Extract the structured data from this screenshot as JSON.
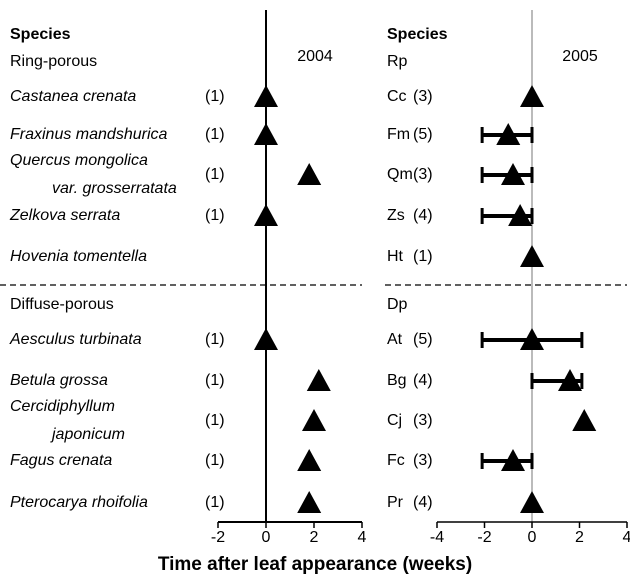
{
  "x_label": "Time after leaf appearance (weeks)",
  "chart_data": [
    {
      "type": "dot",
      "title": "2004",
      "column_title": "Species",
      "xlim": [
        -2,
        4
      ],
      "xticks": [
        -2,
        0,
        2,
        4
      ],
      "groups": [
        {
          "name": "Ring-porous",
          "categories": [
            "Castanea crenata",
            "Fraxinus mandshurica",
            "Quercus mongolica\nvar. grosserratata",
            "Zelkova serrata",
            "Hovenia tomentella"
          ],
          "n": [
            "(1)",
            "(1)",
            "(1)",
            "(1)",
            null
          ],
          "values": [
            0,
            0,
            1.8,
            0,
            null
          ]
        },
        {
          "name": "Diffuse-porous",
          "categories": [
            "Aesculus turbinata",
            "Betula grossa",
            "Cercidiphyllum\njaponicum",
            "Fagus crenata",
            "Pterocarya rhoifolia"
          ],
          "n": [
            "(1)",
            "(1)",
            "(1)",
            "(1)",
            "(1)"
          ],
          "values": [
            0,
            2.2,
            2.0,
            1.8,
            1.8
          ]
        }
      ]
    },
    {
      "type": "dot",
      "title": "2005",
      "column_title": "Species",
      "xlim": [
        -4,
        4
      ],
      "xticks": [
        -4,
        -2,
        0,
        2,
        4
      ],
      "groups": [
        {
          "name": "Rp",
          "categories": [
            "Cc",
            "Fm",
            "Qm",
            "Zs",
            "Ht"
          ],
          "n": [
            "(3)",
            "(5)",
            "(3)",
            "(4)",
            "(1)"
          ],
          "values": [
            0,
            -1.0,
            -0.8,
            -0.5,
            0
          ],
          "low": [
            null,
            -2.1,
            -2.1,
            -2.1,
            null
          ],
          "high": [
            null,
            0,
            0,
            0,
            null
          ]
        },
        {
          "name": "Dp",
          "categories": [
            "At",
            "Bg",
            "Cj",
            "Fc",
            "Pr"
          ],
          "n": [
            "(5)",
            "(4)",
            "(3)",
            "(3)",
            "(4)"
          ],
          "values": [
            0,
            1.6,
            2.2,
            -0.8,
            0
          ],
          "low": [
            -2.1,
            0,
            null,
            -2.1,
            null
          ],
          "high": [
            2.1,
            2.1,
            null,
            0,
            null
          ]
        }
      ]
    }
  ]
}
